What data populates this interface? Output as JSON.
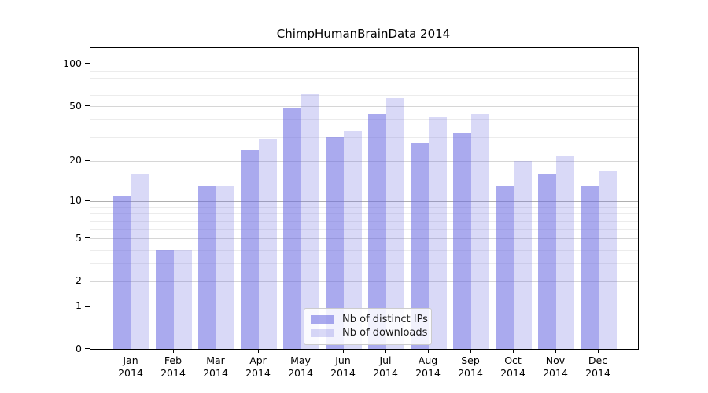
{
  "chart_data": {
    "type": "bar",
    "title": "ChimpHumanBrainData 2014",
    "year_label": "2014",
    "categories": [
      "Jan",
      "Feb",
      "Mar",
      "Apr",
      "May",
      "Jun",
      "Jul",
      "Aug",
      "Sep",
      "Oct",
      "Nov",
      "Dec"
    ],
    "series": [
      {
        "name": "Nb of distinct IPs",
        "color": "#a9a9ee",
        "fill": "rgba(105,105,225,0.57)",
        "values": [
          11,
          4,
          13,
          24,
          48,
          30,
          44,
          27,
          32,
          13,
          16,
          13
        ]
      },
      {
        "name": "Nb of downloads",
        "color": "#d9d9f6",
        "fill": "rgba(105,105,225,0.25)",
        "values": [
          16,
          4,
          13,
          29,
          62,
          33,
          57,
          42,
          44,
          20,
          22,
          17
        ]
      }
    ],
    "y_axis": {
      "scale": "log1p",
      "ymin": 0,
      "ymax": 130,
      "tick_labels": [
        100,
        50,
        20,
        10,
        5,
        2,
        1,
        0
      ],
      "grid_strong": [
        1,
        10,
        100
      ],
      "grid_mid": [
        2,
        5,
        20,
        50
      ],
      "grid_minor": [
        3,
        4,
        6,
        7,
        8,
        9,
        30,
        40,
        60,
        70,
        80,
        90
      ]
    },
    "x_axis": {
      "tick_label_lines": 2
    },
    "legend": {
      "position": "lower center"
    },
    "grid": true
  }
}
